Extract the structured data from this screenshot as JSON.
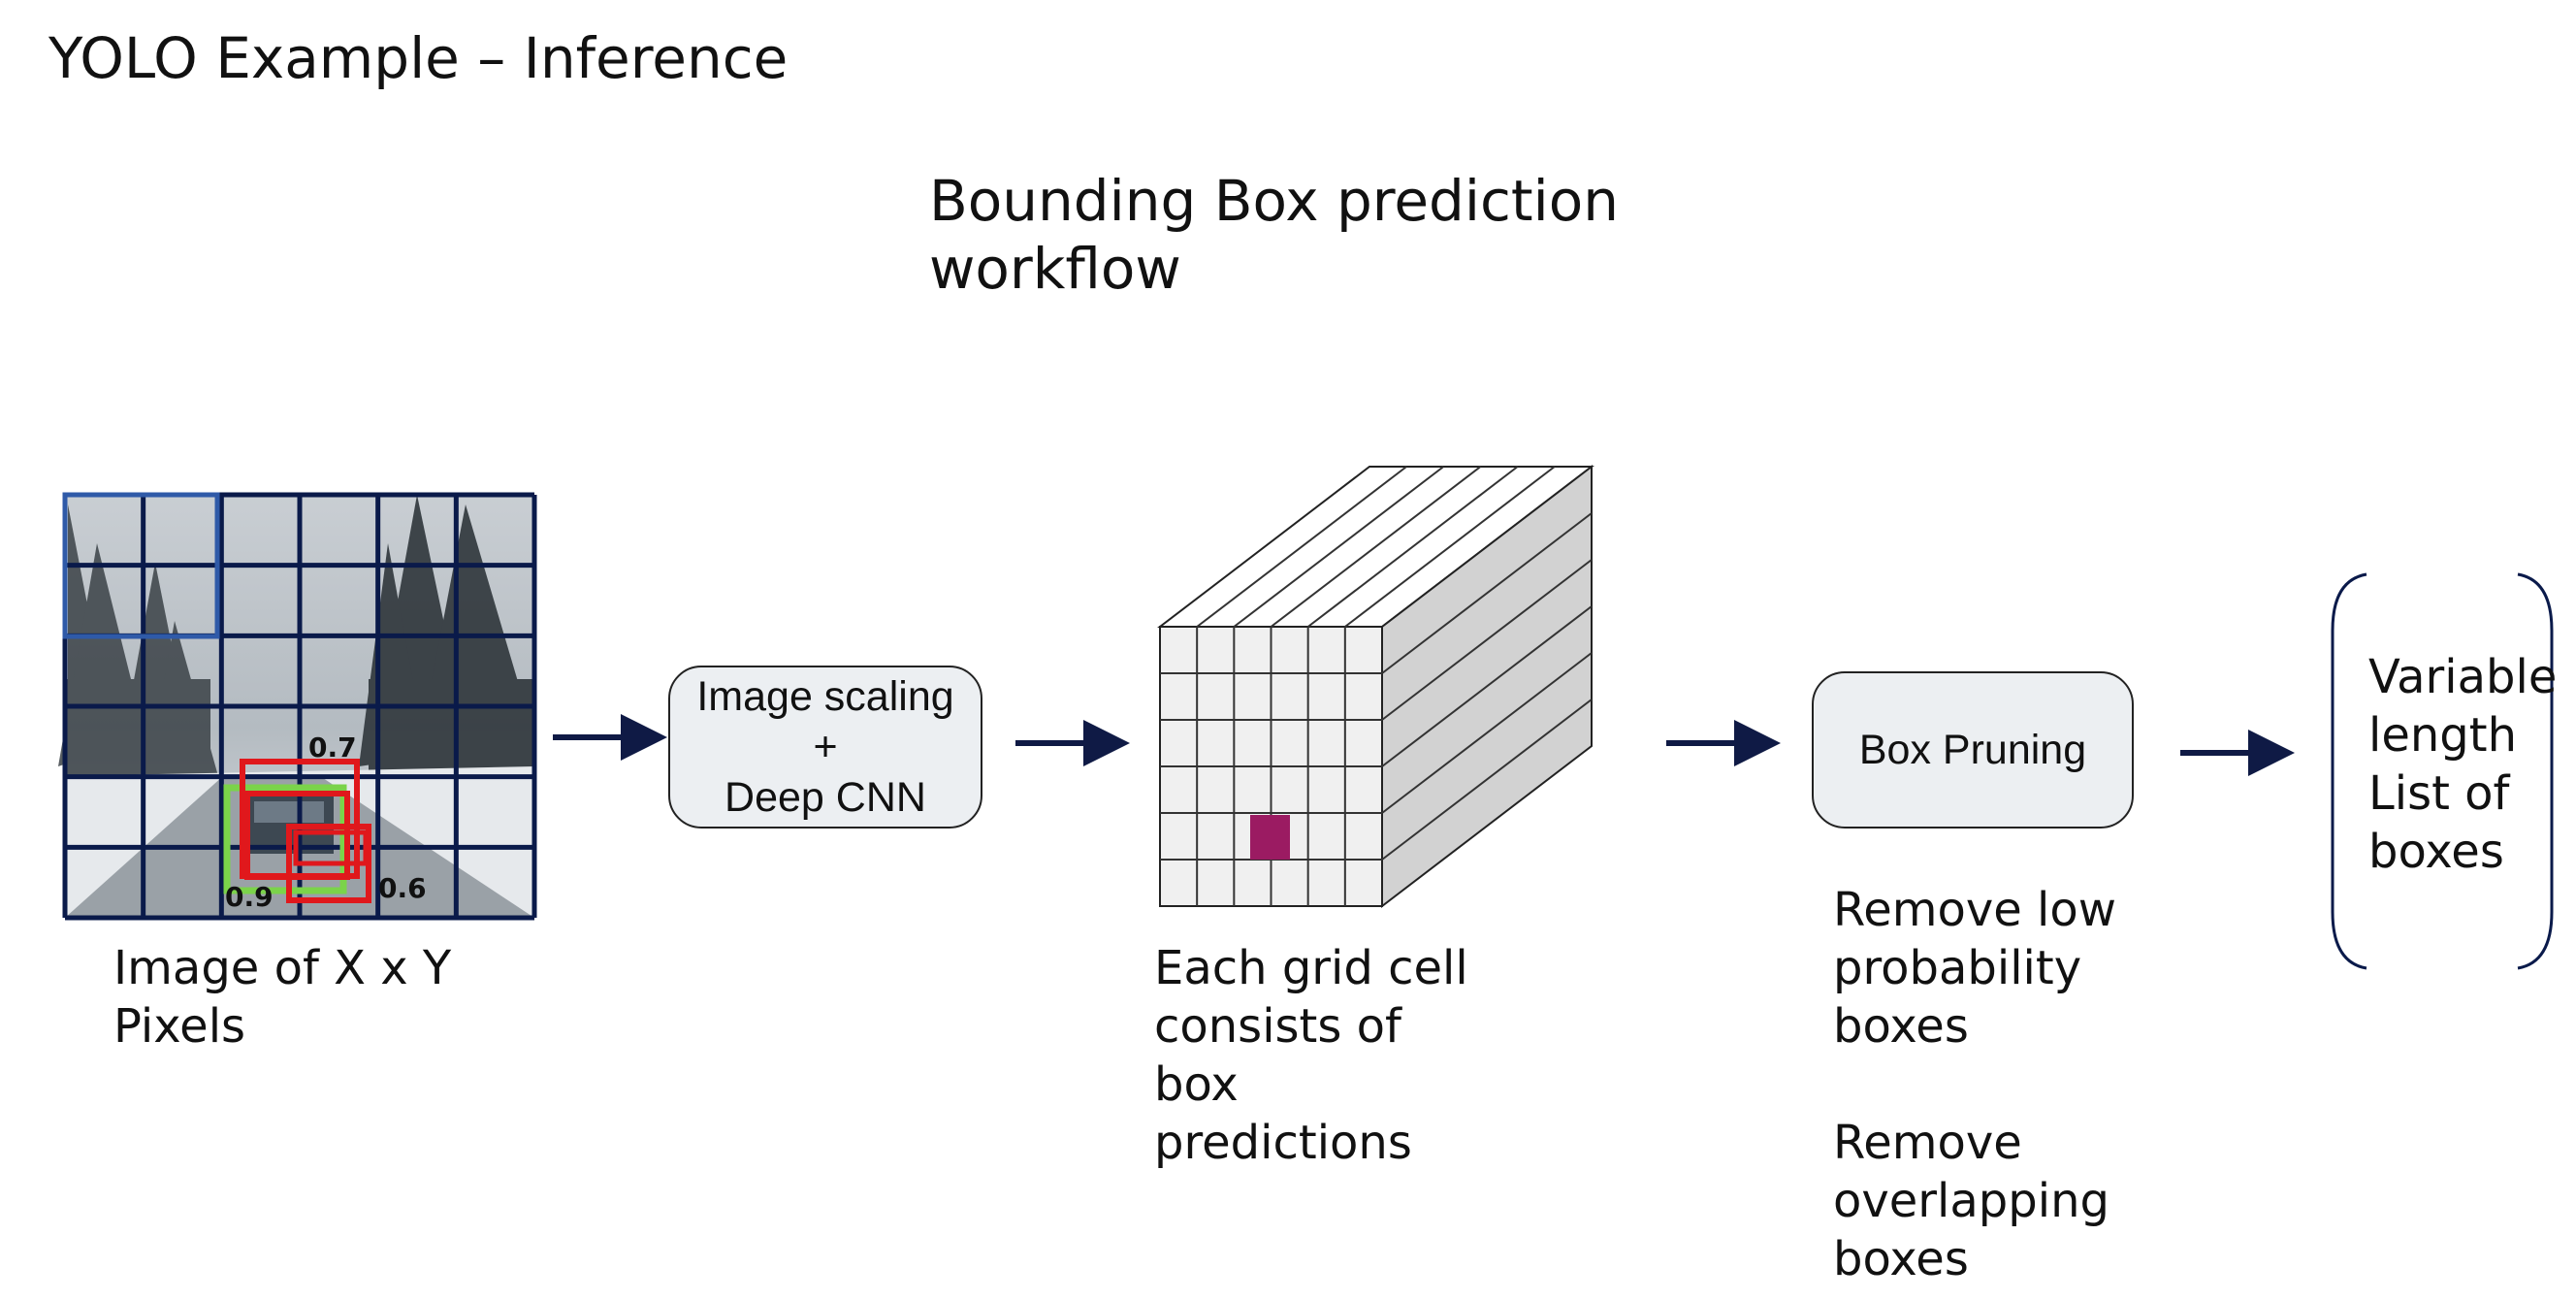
{
  "page_title": "YOLO Example – Inference",
  "diagram_title": [
    "Bounding Box prediction",
    "workflow"
  ],
  "image_panel": {
    "caption": [
      "Image of X x Y",
      "Pixels"
    ],
    "scores": [
      "0.7",
      "0.9",
      "0.6"
    ]
  },
  "cnn_box": {
    "lines": [
      "Image scaling",
      "+",
      "Deep CNN"
    ]
  },
  "grid_caption": [
    "Each grid cell",
    "consists of",
    "box",
    "predictions"
  ],
  "pruning_box": {
    "label": "Box Pruning"
  },
  "pruning_caption": [
    "Remove low",
    "probability",
    "boxes",
    "",
    "Remove",
    "overlapping",
    "boxes"
  ],
  "output_list": {
    "lines": [
      "Variable",
      "length",
      "List of",
      "boxes"
    ]
  },
  "colors": {
    "arrow": "#0f1a45",
    "grid_line": "#0a1a4a",
    "highlight_cell": "#2f5aa8",
    "detection_red": "#e0181c",
    "detection_green": "#7bd34a",
    "selected_cell": "#9b1b62"
  }
}
